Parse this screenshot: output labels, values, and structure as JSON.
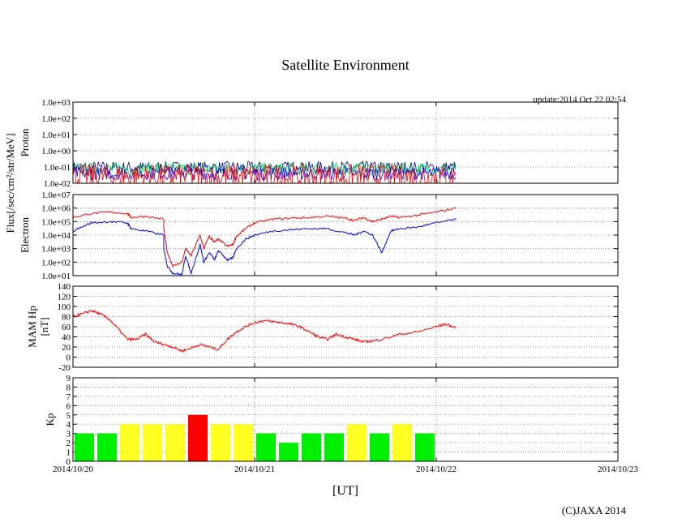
{
  "title": "Satellite Environment",
  "update": "update:2014 Oct 22 02:54",
  "xlabel": "[UT]",
  "copyright": "(C)JAXA 2014",
  "flux_label": "Flux[/sec/cm²/str/MeV]",
  "x_ticks": [
    "2014/10/20",
    "2014/10/21",
    "2014/10/22",
    "2014/10/23"
  ],
  "colors": {
    "red": "#ff0000",
    "blue": "#0000ff",
    "green": "#00dd55",
    "navy": "#000088",
    "kp_green": "#00ee00",
    "kp_yellow": "#ffff22",
    "kp_red": "#ff0000"
  },
  "chart_data": [
    {
      "type": "line",
      "name": "proton",
      "ylabel": "Proton",
      "scale": "log",
      "ylim": [
        0.01,
        1000
      ],
      "yticks": [
        "1.0e-02",
        "1.0e-01",
        "1.0e+00",
        "1.0e+01",
        "1.0e+02",
        "1.0e+03"
      ],
      "xlim_days": [
        0,
        3
      ],
      "data_end_day": 2.11,
      "series": [
        {
          "name": "channel-1",
          "color": "navy",
          "level": 0.09
        },
        {
          "name": "channel-2",
          "color": "green",
          "level": 0.075
        },
        {
          "name": "channel-3",
          "color": "blue",
          "level": 0.04
        },
        {
          "name": "channel-4",
          "color": "red",
          "level": 0.025
        }
      ]
    },
    {
      "type": "line",
      "name": "electron",
      "ylabel": "Electron",
      "scale": "log",
      "ylim": [
        10,
        10000000
      ],
      "yticks": [
        "1.0e+01",
        "1.0e+02",
        "1.0e+03",
        "1.0e+04",
        "1.0e+05",
        "1.0e+06",
        "1.0e+07"
      ],
      "xlim_days": [
        0,
        3
      ],
      "series": [
        {
          "name": "electron-red",
          "color": "red",
          "x": [
            0,
            0.1,
            0.2,
            0.3,
            0.32,
            0.4,
            0.5,
            0.5,
            0.52,
            0.55,
            0.6,
            0.62,
            0.65,
            0.7,
            0.72,
            0.75,
            0.78,
            0.8,
            0.85,
            0.88,
            0.9,
            0.95,
            1.0,
            1.1,
            1.2,
            1.3,
            1.4,
            1.5,
            1.55,
            1.6,
            1.65,
            1.7,
            1.75,
            1.8,
            1.9,
            2.0,
            2.11
          ],
          "y": [
            200000,
            400000,
            500000,
            400000,
            200000,
            250000,
            150000,
            30000,
            500,
            50,
            100,
            1000,
            300,
            10000,
            1000,
            8000,
            3000,
            5000,
            1500,
            2000,
            8000,
            30000,
            80000,
            150000,
            180000,
            200000,
            250000,
            180000,
            120000,
            200000,
            100000,
            150000,
            250000,
            200000,
            300000,
            500000,
            1000000
          ]
        },
        {
          "name": "electron-blue",
          "color": "blue",
          "x": [
            0,
            0.1,
            0.2,
            0.3,
            0.32,
            0.4,
            0.5,
            0.5,
            0.52,
            0.55,
            0.6,
            0.62,
            0.65,
            0.7,
            0.72,
            0.75,
            0.78,
            0.8,
            0.85,
            0.88,
            0.9,
            0.95,
            1.0,
            1.1,
            1.2,
            1.3,
            1.4,
            1.5,
            1.55,
            1.6,
            1.65,
            1.7,
            1.75,
            1.8,
            1.9,
            2.0,
            2.11
          ],
          "y": [
            20000,
            80000,
            100000,
            80000,
            30000,
            20000,
            10000,
            1000,
            50,
            15,
            12,
            300,
            15,
            2000,
            100,
            500,
            150,
            700,
            150,
            200,
            1000,
            5000,
            10000,
            20000,
            25000,
            30000,
            30000,
            15000,
            10000,
            20000,
            10000,
            500,
            20000,
            30000,
            40000,
            80000,
            150000
          ]
        }
      ]
    },
    {
      "type": "line",
      "name": "mam",
      "ylabel": "MAM Hp",
      "ylabel2": "[nT]",
      "ylim": [
        -20,
        140
      ],
      "yticks": [
        "-20",
        "0",
        "20",
        "40",
        "60",
        "80",
        "100",
        "120",
        "140"
      ],
      "xlim_days": [
        0,
        3
      ],
      "series": [
        {
          "name": "mam-hp",
          "color": "red",
          "x": [
            0,
            0.05,
            0.1,
            0.15,
            0.2,
            0.25,
            0.3,
            0.35,
            0.4,
            0.45,
            0.5,
            0.55,
            0.6,
            0.65,
            0.7,
            0.75,
            0.8,
            0.85,
            0.9,
            0.95,
            1.0,
            1.05,
            1.1,
            1.15,
            1.2,
            1.25,
            1.3,
            1.35,
            1.4,
            1.45,
            1.5,
            1.55,
            1.6,
            1.65,
            1.7,
            1.8,
            1.9,
            2.0,
            2.05,
            2.11
          ],
          "y": [
            80,
            85,
            92,
            85,
            75,
            55,
            35,
            35,
            45,
            30,
            25,
            20,
            12,
            18,
            25,
            20,
            15,
            35,
            50,
            60,
            68,
            72,
            70,
            68,
            65,
            60,
            50,
            40,
            35,
            45,
            40,
            35,
            30,
            32,
            35,
            45,
            50,
            60,
            65,
            58
          ]
        }
      ]
    },
    {
      "type": "bar",
      "name": "kp",
      "ylabel": "Kp",
      "ylim": [
        0,
        9
      ],
      "yticks": [
        "0",
        "1",
        "2",
        "3",
        "4",
        "5",
        "6",
        "7",
        "8",
        "9"
      ],
      "x_start_day": 0,
      "bin_hours": 3,
      "values": [
        3,
        3,
        4,
        4,
        4,
        5,
        4,
        4,
        3,
        2,
        3,
        3,
        4,
        3,
        4,
        3
      ],
      "color_rule": {
        "below_4": "kp_green",
        "equal_4": "kp_yellow",
        "5_and_above": "kp_red"
      }
    }
  ]
}
